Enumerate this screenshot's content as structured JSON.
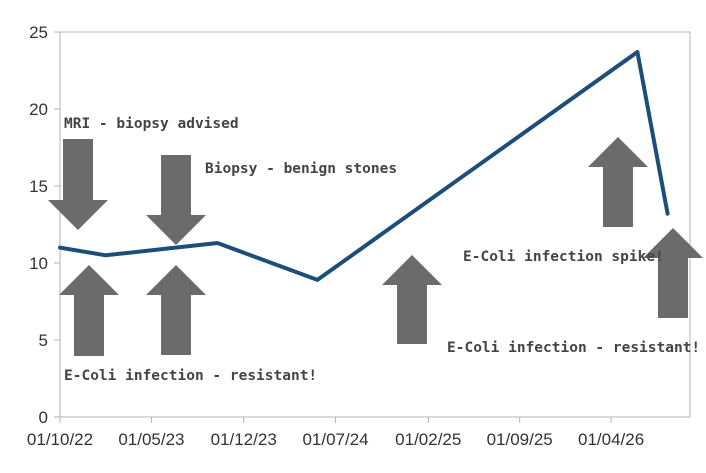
{
  "chart_data": {
    "type": "line",
    "title": "",
    "xlabel": "",
    "ylabel": "",
    "x_ticks": [
      "01/10/22",
      "01/05/23",
      "01/12/23",
      "01/07/24",
      "01/02/25",
      "01/09/25",
      "01/04/26"
    ],
    "y_ticks": [
      0,
      5,
      10,
      15,
      20,
      25
    ],
    "ylim": [
      0,
      25
    ],
    "xlim": [
      "2022-10-01",
      "2026-10-01"
    ],
    "grid": {
      "horizontal": false,
      "vertical": false
    },
    "legend": "none",
    "series": [
      {
        "color": "#1b4f7a",
        "points": [
          {
            "x": "2022-10-01",
            "y": 11.0
          },
          {
            "x": "2023-01-15",
            "y": 10.5
          },
          {
            "x": "2023-10-01",
            "y": 11.3
          },
          {
            "x": "2024-05-20",
            "y": 8.9
          },
          {
            "x": "2026-06-01",
            "y": 23.7
          },
          {
            "x": "2026-08-10",
            "y": 13.2
          }
        ]
      }
    ],
    "annotations": [
      {
        "text": "MRI - biopsy advised",
        "x": "2022-10-01",
        "arrow": "down"
      },
      {
        "text": "Biopsy - benign stones",
        "x": "2023-06-15",
        "arrow": "down"
      },
      {
        "text": "E-Coli infection - resistant!",
        "x": "2022-12-01",
        "arrow": "up"
      },
      {
        "arrow": "up",
        "x": "2023-06-15"
      },
      {
        "text": "E-Coli infection - resistant!",
        "x": "2025-01-15",
        "arrow": "up"
      },
      {
        "arrow": "up",
        "x": "2026-02-01"
      },
      {
        "text": "E-Coli infection spike!",
        "x": "2026-08-01",
        "arrow": "up"
      }
    ],
    "colors": {
      "line": "#1b4f7a",
      "arrow": "#6b6b6b",
      "axis": "#b3b3b3"
    }
  }
}
